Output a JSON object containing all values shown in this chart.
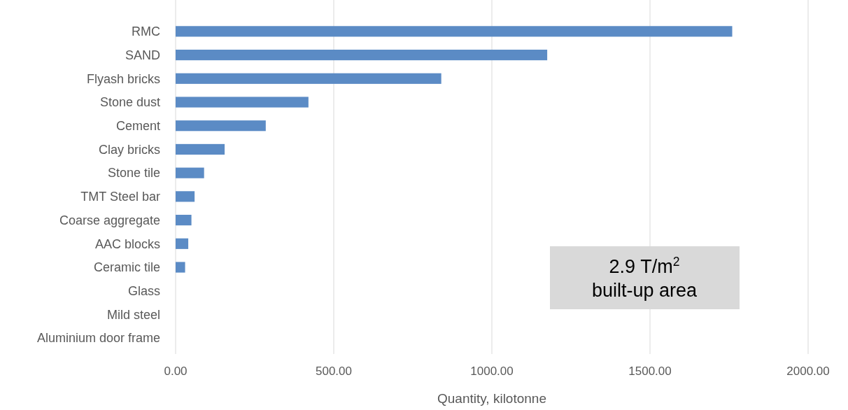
{
  "chart_data": {
    "type": "bar",
    "orientation": "horizontal",
    "categories": [
      "RMC",
      "SAND",
      "Flyash bricks",
      "Stone dust",
      "Cement",
      "Clay bricks",
      "Stone tile",
      "TMT Steel bar",
      "Coarse aggregate",
      "AAC blocks",
      "Ceramic tile",
      "Glass",
      "Mild steel",
      "Aluminium door frame"
    ],
    "values": [
      1760,
      1175,
      840,
      420,
      285,
      155,
      90,
      60,
      50,
      40,
      30,
      0,
      0,
      0
    ],
    "color": "#5b8bc5",
    "xlim": [
      0,
      2000
    ],
    "xticks": [
      {
        "value": 0,
        "label": "0.00"
      },
      {
        "value": 500,
        "label": "500.00"
      },
      {
        "value": 1000,
        "label": "1000.00"
      },
      {
        "value": 1500,
        "label": "1500.00"
      },
      {
        "value": 2000,
        "label": "2000.00"
      }
    ],
    "xlabel": "Quantity, kilotonne",
    "grid": "x",
    "annotations": [
      "2.9 T/m$^{2}$\nbuilt-up area"
    ]
  }
}
